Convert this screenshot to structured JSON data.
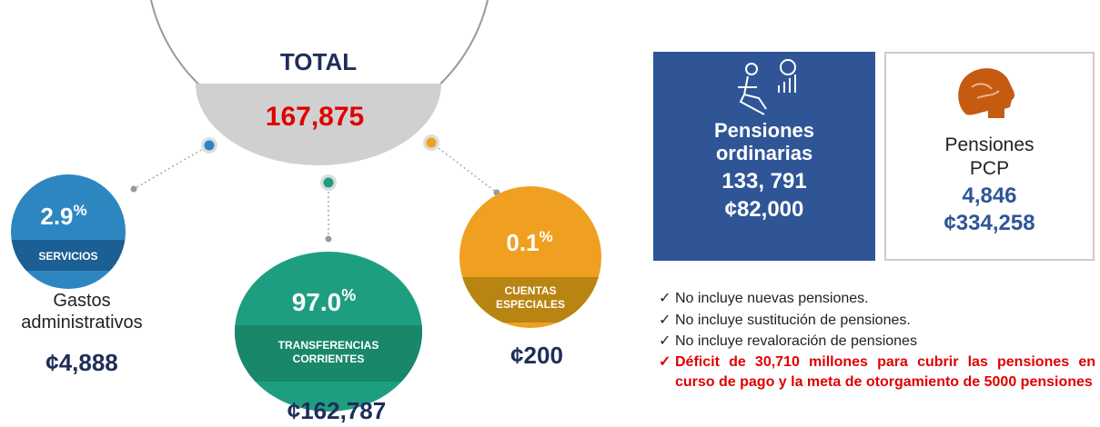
{
  "total": {
    "label": "TOTAL",
    "value": "167,875"
  },
  "segments": [
    {
      "percent": "2.9",
      "percent_sign": "%",
      "label": "SERVICIOS",
      "caption": "Gastos administrativos",
      "amount": "¢4,888"
    },
    {
      "percent": "97.0",
      "percent_sign": "%",
      "label": "TRANSFERENCIAS CORRIENTES",
      "amount": "¢162,787"
    },
    {
      "percent": "0.1",
      "percent_sign": "%",
      "label": "CUENTAS ESPECIALES",
      "amount": "¢200"
    }
  ],
  "cards": [
    {
      "title": "Pensiones ordinarias",
      "count": "133, 791",
      "amount": "¢82,000"
    },
    {
      "title": "Pensiones PCP",
      "count": "4,846",
      "amount": "¢334,258"
    }
  ],
  "notes": [
    "No incluye nuevas pensiones.",
    "No incluye sustitución de pensiones.",
    "No incluye revaloración de pensiones",
    "Déficit de 30,710 millones para cubrir las pensiones en curso de pago y la meta de otorgamiento de 5000 pensiones"
  ]
}
